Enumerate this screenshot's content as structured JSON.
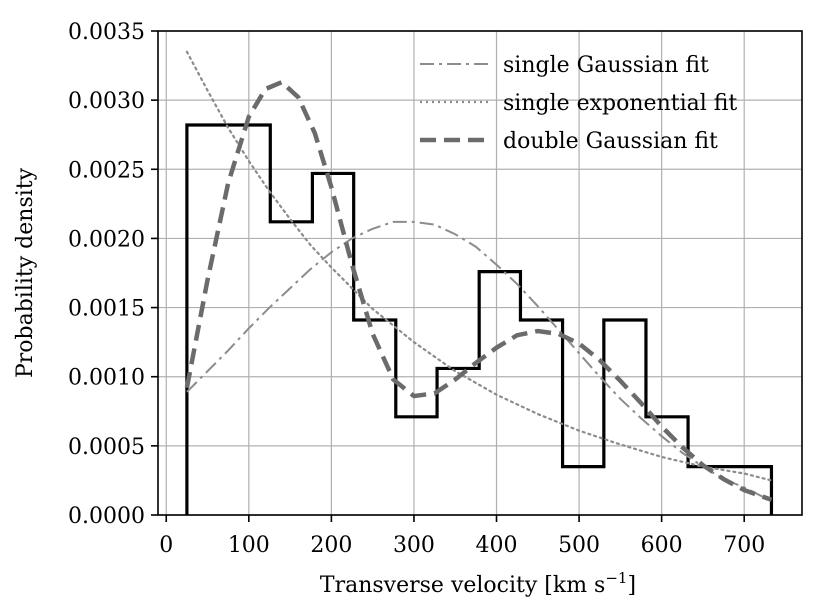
{
  "chart_data": {
    "type": "line",
    "xlabel": "Transverse velocity [km s",
    "xlabel_superscript": "−1",
    "xlabel_suffix": "]",
    "ylabel": "Probability density",
    "xlim": [
      -10,
      770
    ],
    "ylim": [
      0,
      0.0035
    ],
    "x_ticks": [
      0,
      100,
      200,
      300,
      400,
      500,
      600,
      700
    ],
    "x_tick_labels": [
      "0",
      "100",
      "200",
      "300",
      "400",
      "500",
      "600",
      "700"
    ],
    "y_ticks": [
      0,
      0.0005,
      0.001,
      0.0015,
      0.002,
      0.0025,
      0.003,
      0.0035
    ],
    "y_tick_labels": [
      "0.0000",
      "0.0005",
      "0.0010",
      "0.0015",
      "0.0020",
      "0.0025",
      "0.0030",
      "0.0035"
    ],
    "grid": true,
    "legend_position": "top-right",
    "histogram": {
      "bin_edges": [
        25,
        126,
        177,
        227,
        278,
        328,
        379,
        429,
        480,
        530,
        581,
        632,
        733
      ],
      "density": [
        0.00282,
        0.00212,
        0.00247,
        0.00141,
        0.00071,
        0.00106,
        0.00176,
        0.00141,
        0.00035,
        0.00141,
        0.00071,
        0.00035
      ],
      "color": "#000000"
    },
    "series": [
      {
        "name": "single Gaussian fit",
        "style": "dashdot",
        "color": "#8c8c8c",
        "x": [
          25,
          50,
          75,
          100,
          125,
          150,
          175,
          200,
          225,
          250,
          275,
          300,
          325,
          350,
          375,
          400,
          425,
          450,
          475,
          500,
          525,
          550,
          575,
          600,
          625,
          650,
          675,
          700,
          733
        ],
        "y": [
          0.00089,
          0.00104,
          0.00119,
          0.00135,
          0.0015,
          0.00164,
          0.00178,
          0.0019,
          0.002,
          0.00207,
          0.00212,
          0.00212,
          0.0021,
          0.00203,
          0.00194,
          0.00181,
          0.00167,
          0.00151,
          0.00134,
          0.00117,
          0.001,
          0.00084,
          0.0007,
          0.00057,
          0.00045,
          0.00035,
          0.00026,
          0.0002,
          0.0001
        ]
      },
      {
        "name": "single exponential fit",
        "style": "dotted",
        "color": "#8c8c8c",
        "x": [
          25,
          50,
          75,
          100,
          125,
          150,
          175,
          200,
          250,
          300,
          350,
          400,
          450,
          500,
          550,
          600,
          650,
          700,
          733
        ],
        "y": [
          0.00335,
          0.00307,
          0.0028,
          0.00256,
          0.00234,
          0.00214,
          0.00195,
          0.00179,
          0.00149,
          0.00125,
          0.00104,
          0.00087,
          0.00073,
          0.00061,
          0.00051,
          0.00042,
          0.00035,
          0.0003,
          0.00025
        ]
      },
      {
        "name": "double Gaussian fit",
        "style": "dashed",
        "color": "#6b6b6b",
        "x": [
          25,
          50,
          75,
          100,
          120,
          140,
          160,
          180,
          200,
          225,
          250,
          275,
          300,
          325,
          350,
          375,
          400,
          425,
          450,
          475,
          500,
          525,
          550,
          575,
          600,
          625,
          650,
          675,
          700,
          733
        ],
        "y": [
          0.00092,
          0.0017,
          0.0024,
          0.00288,
          0.00308,
          0.00313,
          0.00302,
          0.00276,
          0.00237,
          0.00181,
          0.00131,
          0.00098,
          0.00086,
          0.00088,
          0.00098,
          0.0011,
          0.00121,
          0.0013,
          0.00133,
          0.00131,
          0.00124,
          0.00112,
          0.00097,
          0.00081,
          0.00064,
          0.00049,
          0.00036,
          0.00026,
          0.00018,
          0.00011
        ]
      }
    ]
  }
}
